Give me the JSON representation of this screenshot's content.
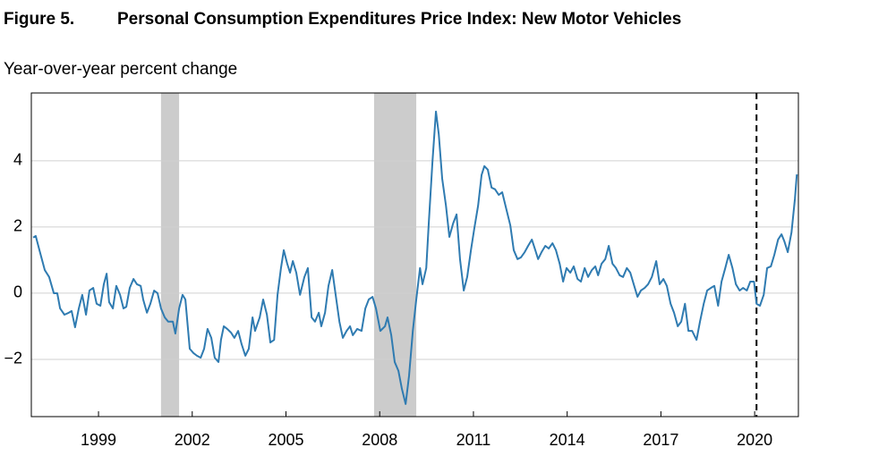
{
  "chart_data": {
    "type": "line",
    "figure_label": "Figure 5.",
    "title": "Personal Consumption Expenditures Price Index: New Motor Vehicles",
    "subtitle": "Year-over-year percent change",
    "color": "#2f7bb1",
    "grid": true,
    "shade_color": "#cccccc",
    "recessions": [
      [
        2001.0,
        2001.58
      ],
      [
        2007.82,
        2009.17
      ]
    ],
    "vline": 2020.06,
    "xlim": [
      1996.85,
      2021.4
    ],
    "ylim": [
      -3.73,
      6.05
    ],
    "xticks": [
      1999,
      2002,
      2005,
      2008,
      2011,
      2014,
      2017,
      2020
    ],
    "yticks": [
      {
        "value": -2,
        "label": "−2"
      },
      0,
      2,
      4
    ],
    "x": [
      1996.91,
      1996.99,
      1997.11,
      1997.28,
      1997.42,
      1997.57,
      1997.68,
      1997.77,
      1997.91,
      1998.05,
      1998.14,
      1998.25,
      1998.37,
      1998.48,
      1998.6,
      1998.71,
      1998.83,
      1998.94,
      1999.06,
      1999.17,
      1999.26,
      1999.34,
      1999.46,
      1999.57,
      1999.69,
      1999.8,
      1999.89,
      2000.0,
      2000.12,
      2000.23,
      2000.35,
      2000.43,
      2000.55,
      2000.66,
      2000.78,
      2000.89,
      2001.0,
      2001.12,
      2001.23,
      2001.38,
      2001.46,
      2001.58,
      2001.69,
      2001.78,
      2001.92,
      2002.04,
      2002.15,
      2002.27,
      2002.38,
      2002.49,
      2002.61,
      2002.72,
      2002.84,
      2002.92,
      2003.01,
      2003.12,
      2003.24,
      2003.35,
      2003.47,
      2003.58,
      2003.7,
      2003.81,
      2003.93,
      2004.01,
      2004.16,
      2004.27,
      2004.39,
      2004.5,
      2004.62,
      2004.73,
      2004.84,
      2004.93,
      2005.04,
      2005.13,
      2005.22,
      2005.33,
      2005.45,
      2005.59,
      2005.7,
      2005.82,
      2005.93,
      2006.05,
      2006.13,
      2006.25,
      2006.36,
      2006.48,
      2006.59,
      2006.71,
      2006.82,
      2006.94,
      2007.05,
      2007.14,
      2007.28,
      2007.42,
      2007.54,
      2007.65,
      2007.77,
      2007.88,
      2008.02,
      2008.17,
      2008.25,
      2008.37,
      2008.48,
      2008.6,
      2008.71,
      2008.83,
      2008.94,
      2009.06,
      2009.17,
      2009.29,
      2009.37,
      2009.49,
      2009.57,
      2009.69,
      2009.8,
      2009.89,
      2010.0,
      2010.12,
      2010.23,
      2010.35,
      2010.46,
      2010.57,
      2010.69,
      2010.8,
      2010.92,
      2011.03,
      2011.15,
      2011.26,
      2011.35,
      2011.46,
      2011.58,
      2011.69,
      2011.81,
      2011.92,
      2012.06,
      2012.18,
      2012.29,
      2012.41,
      2012.52,
      2012.64,
      2012.75,
      2012.87,
      2012.98,
      2013.07,
      2013.18,
      2013.3,
      2013.41,
      2013.53,
      2013.64,
      2013.76,
      2013.87,
      2013.98,
      2014.1,
      2014.21,
      2014.33,
      2014.44,
      2014.56,
      2014.67,
      2014.79,
      2014.9,
      2014.99,
      2015.1,
      2015.22,
      2015.33,
      2015.45,
      2015.56,
      2015.68,
      2015.79,
      2015.91,
      2016.02,
      2016.13,
      2016.25,
      2016.36,
      2016.48,
      2016.59,
      2016.71,
      2016.85,
      2016.96,
      2017.08,
      2017.19,
      2017.31,
      2017.42,
      2017.54,
      2017.65,
      2017.77,
      2017.88,
      2018.0,
      2018.14,
      2018.25,
      2018.37,
      2018.48,
      2018.6,
      2018.71,
      2018.83,
      2018.94,
      2019.06,
      2019.17,
      2019.29,
      2019.4,
      2019.52,
      2019.63,
      2019.75,
      2019.86,
      2019.98,
      2020.06,
      2020.17,
      2020.29,
      2020.4,
      2020.52,
      2020.63,
      2020.75,
      2020.86,
      2020.95,
      2021.06,
      2021.18,
      2021.29,
      2021.35
    ],
    "values": [
      1.68,
      1.73,
      1.3,
      0.7,
      0.49,
      0,
      0,
      -0.46,
      -0.65,
      -0.59,
      -0.54,
      -1.03,
      -0.46,
      -0.05,
      -0.65,
      0.08,
      0.16,
      -0.32,
      -0.38,
      0.27,
      0.59,
      -0.27,
      -0.46,
      0.22,
      -0.05,
      -0.46,
      -0.41,
      0.16,
      0.43,
      0.27,
      0.22,
      -0.19,
      -0.59,
      -0.32,
      0.08,
      0,
      -0.46,
      -0.73,
      -0.86,
      -0.86,
      -1.22,
      -0.46,
      -0.05,
      -0.19,
      -1.68,
      -1.81,
      -1.89,
      -1.95,
      -1.68,
      -1.08,
      -1.35,
      -1.95,
      -2.08,
      -1.41,
      -1.0,
      -1.08,
      -1.19,
      -1.35,
      -1.14,
      -1.54,
      -1.89,
      -1.68,
      -0.73,
      -1.14,
      -0.73,
      -0.19,
      -0.65,
      -1.49,
      -1.41,
      -0.05,
      0.76,
      1.3,
      0.89,
      0.62,
      0.97,
      0.62,
      -0.05,
      0.49,
      0.76,
      -0.73,
      -0.86,
      -0.59,
      -1.0,
      -0.59,
      0.22,
      0.7,
      -0.05,
      -0.86,
      -1.35,
      -1.14,
      -1.0,
      -1.27,
      -1.08,
      -1.14,
      -0.46,
      -0.19,
      -0.11,
      -0.46,
      -1.14,
      -1.0,
      -0.73,
      -1.27,
      -2.08,
      -2.35,
      -2.89,
      -3.35,
      -2.49,
      -1.14,
      -0.19,
      0.76,
      0.27,
      0.76,
      2.11,
      4.0,
      5.49,
      4.81,
      3.46,
      2.65,
      1.7,
      2.11,
      2.38,
      1.03,
      0.08,
      0.49,
      1.3,
      1.97,
      2.65,
      3.57,
      3.84,
      3.73,
      3.19,
      3.14,
      2.97,
      3.05,
      2.51,
      2.05,
      1.3,
      1.03,
      1.08,
      1.24,
      1.43,
      1.62,
      1.3,
      1.03,
      1.24,
      1.43,
      1.35,
      1.51,
      1.3,
      0.89,
      0.35,
      0.76,
      0.62,
      0.81,
      0.43,
      0.35,
      0.76,
      0.49,
      0.7,
      0.81,
      0.54,
      0.89,
      1.03,
      1.43,
      0.89,
      0.76,
      0.54,
      0.49,
      0.76,
      0.62,
      0.27,
      -0.11,
      0.08,
      0.16,
      0.27,
      0.49,
      0.97,
      0.27,
      0.43,
      0.22,
      -0.32,
      -0.59,
      -1.0,
      -0.86,
      -0.32,
      -1.14,
      -1.14,
      -1.41,
      -0.86,
      -0.32,
      0.08,
      0.16,
      0.22,
      -0.38,
      0.35,
      0.76,
      1.16,
      0.76,
      0.27,
      0.08,
      0.16,
      0.08,
      0.35,
      0.35,
      -0.32,
      -0.38,
      -0.05,
      0.76,
      0.81,
      1.16,
      1.62,
      1.78,
      1.57,
      1.24,
      1.84,
      2.86,
      3.59
    ]
  }
}
